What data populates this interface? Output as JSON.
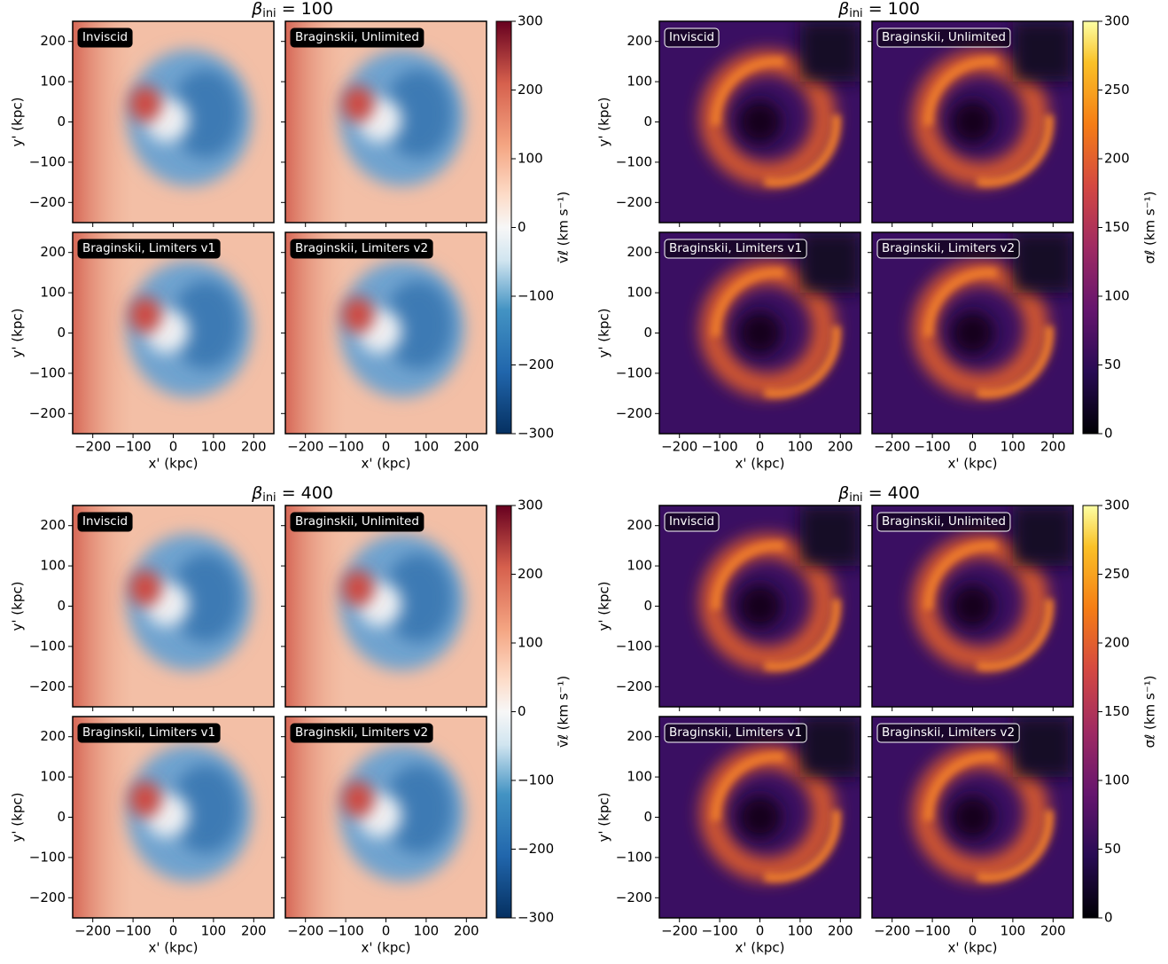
{
  "chart_data": [
    {
      "type": "heatmap",
      "title": {
        "symbol": "β",
        "sub": "ini",
        "text": " = 100"
      },
      "colormap": "RdBu_r",
      "xlabel": "x' (kpc)",
      "ylabel": "y' (kpc)",
      "xlim": [
        -250,
        250
      ],
      "ylim": [
        -250,
        250
      ],
      "xticks": [
        {
          "value": -200,
          "label": "−200"
        },
        {
          "value": -100,
          "label": "−100"
        },
        0,
        100,
        200
      ],
      "yticks": [
        {
          "value": -200,
          "label": "−200"
        },
        {
          "value": -100,
          "label": "−100"
        },
        0,
        100,
        200
      ],
      "panels": [
        "Inviscid",
        "Braginskii, Unlimited",
        "Braginskii, Limiters v1",
        "Braginskii, Limiters v2"
      ],
      "colorbar": {
        "label": "v̄ℓ (km s⁻¹)",
        "lim": [
          -300,
          300
        ],
        "ticks": [
          {
            "value": -300,
            "label": "−300"
          },
          {
            "value": -200,
            "label": "−200"
          },
          {
            "value": -100,
            "label": "−100"
          },
          0,
          100,
          200,
          300
        ]
      }
    },
    {
      "type": "heatmap",
      "title": {
        "symbol": "β",
        "sub": "ini",
        "text": " = 100"
      },
      "colormap": "inferno",
      "xlabel": "x' (kpc)",
      "ylabel": "y' (kpc)",
      "xlim": [
        -250,
        250
      ],
      "ylim": [
        -250,
        250
      ],
      "xticks": [
        {
          "value": -200,
          "label": "−200"
        },
        {
          "value": -100,
          "label": "−100"
        },
        0,
        100,
        200
      ],
      "yticks": [
        {
          "value": -200,
          "label": "−200"
        },
        {
          "value": -100,
          "label": "−100"
        },
        0,
        100,
        200
      ],
      "panels": [
        "Inviscid",
        "Braginskii, Unlimited",
        "Braginskii, Limiters v1",
        "Braginskii, Limiters v2"
      ],
      "colorbar": {
        "label": "σℓ (km s⁻¹)",
        "lim": [
          0,
          300
        ],
        "ticks": [
          0,
          50,
          100,
          150,
          200,
          250,
          300
        ]
      }
    },
    {
      "type": "heatmap",
      "title": {
        "symbol": "β",
        "sub": "ini",
        "text": " = 400"
      },
      "colormap": "RdBu_r",
      "xlabel": "x' (kpc)",
      "ylabel": "y' (kpc)",
      "xlim": [
        -250,
        250
      ],
      "ylim": [
        -250,
        250
      ],
      "xticks": [
        {
          "value": -200,
          "label": "−200"
        },
        {
          "value": -100,
          "label": "−100"
        },
        0,
        100,
        200
      ],
      "yticks": [
        {
          "value": -200,
          "label": "−200"
        },
        {
          "value": -100,
          "label": "−100"
        },
        0,
        100,
        200
      ],
      "panels": [
        "Inviscid",
        "Braginskii, Unlimited",
        "Braginskii, Limiters v1",
        "Braginskii, Limiters v2"
      ],
      "colorbar": {
        "label": "v̄ℓ (km s⁻¹)",
        "lim": [
          -300,
          300
        ],
        "ticks": [
          {
            "value": -300,
            "label": "−300"
          },
          {
            "value": -200,
            "label": "−200"
          },
          {
            "value": -100,
            "label": "−100"
          },
          0,
          100,
          200,
          300
        ]
      }
    },
    {
      "type": "heatmap",
      "title": {
        "symbol": "β",
        "sub": "ini",
        "text": " = 400"
      },
      "colormap": "inferno",
      "xlabel": "x' (kpc)",
      "ylabel": "y' (kpc)",
      "xlim": [
        -250,
        250
      ],
      "ylim": [
        -250,
        250
      ],
      "xticks": [
        {
          "value": -200,
          "label": "−200"
        },
        {
          "value": -100,
          "label": "−100"
        },
        0,
        100,
        200
      ],
      "yticks": [
        {
          "value": -200,
          "label": "−200"
        },
        {
          "value": -100,
          "label": "−100"
        },
        0,
        100,
        200
      ],
      "panels": [
        "Inviscid",
        "Braginskii, Unlimited",
        "Braginskii, Limiters v1",
        "Braginskii, Limiters v2"
      ],
      "colorbar": {
        "label": "σℓ (km s⁻¹)",
        "lim": [
          0,
          300
        ],
        "ticks": [
          0,
          50,
          100,
          150,
          200,
          250,
          300
        ]
      }
    }
  ]
}
